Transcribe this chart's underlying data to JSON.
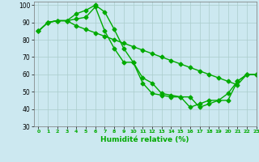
{
  "xlabel": "Humidité relative (%)",
  "background_color": "#cce8f0",
  "grid_color": "#aacccc",
  "line_color": "#00aa00",
  "marker": "D",
  "markersize": 2.5,
  "linewidth": 1.0,
  "xlim": [
    -0.5,
    23
  ],
  "ylim": [
    30,
    102
  ],
  "yticks": [
    30,
    40,
    50,
    60,
    70,
    80,
    90,
    100
  ],
  "xticks": [
    0,
    1,
    2,
    3,
    4,
    5,
    6,
    7,
    8,
    9,
    10,
    11,
    12,
    13,
    14,
    15,
    16,
    17,
    18,
    19,
    20,
    21,
    22,
    23
  ],
  "series": [
    [
      85,
      90,
      91,
      91,
      95,
      97,
      100,
      96,
      86,
      75,
      67,
      55,
      49,
      48,
      47,
      47,
      41,
      43,
      45,
      45,
      49,
      56,
      60,
      60
    ],
    [
      85,
      90,
      91,
      91,
      92,
      93,
      99,
      85,
      75,
      67,
      67,
      58,
      55,
      49,
      48,
      47,
      47,
      41,
      43,
      45,
      45,
      56,
      60,
      60
    ],
    [
      85,
      90,
      91,
      91,
      88,
      86,
      84,
      82,
      80,
      78,
      76,
      74,
      72,
      70,
      68,
      66,
      64,
      62,
      60,
      58,
      56,
      54,
      60,
      60
    ]
  ]
}
